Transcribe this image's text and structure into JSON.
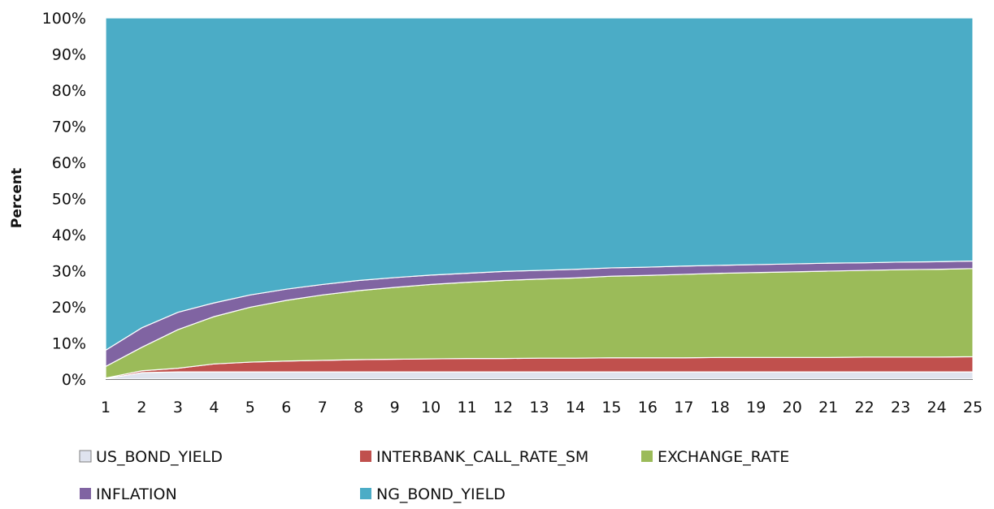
{
  "chart_data": {
    "type": "area",
    "stacked": "percent",
    "title": "",
    "xlabel": "",
    "ylabel": "Percent",
    "x": [
      1,
      2,
      3,
      4,
      5,
      6,
      7,
      8,
      9,
      10,
      11,
      12,
      13,
      14,
      15,
      16,
      17,
      18,
      19,
      20,
      21,
      22,
      23,
      24,
      25
    ],
    "ylim": [
      0,
      100
    ],
    "yticks": [
      "0%",
      "10%",
      "20%",
      "30%",
      "40%",
      "50%",
      "60%",
      "70%",
      "80%",
      "90%",
      "100%"
    ],
    "legend_position": "bottom",
    "series": [
      {
        "name": "US_BOND_YIELD",
        "color": "#dfe3ee",
        "values": [
          0.1,
          1.8,
          2.0,
          2.0,
          2.0,
          2.0,
          2.0,
          2.0,
          2.0,
          2.0,
          2.0,
          2.0,
          2.0,
          2.0,
          2.0,
          2.0,
          2.0,
          2.0,
          2.0,
          2.0,
          2.0,
          2.0,
          2.0,
          2.0,
          2.0
        ]
      },
      {
        "name": "INTERBANK_CALL_RATE_SM",
        "color": "#c0504d",
        "values": [
          0.2,
          0.5,
          1.0,
          2.2,
          2.7,
          3.0,
          3.2,
          3.4,
          3.5,
          3.6,
          3.7,
          3.7,
          3.8,
          3.8,
          3.9,
          3.9,
          3.9,
          4.0,
          4.0,
          4.0,
          4.0,
          4.1,
          4.1,
          4.1,
          4.2
        ]
      },
      {
        "name": "EXCHANGE_RATE",
        "color": "#9bbb59",
        "values": [
          3.2,
          6.5,
          10.7,
          13.1,
          15.2,
          16.8,
          18.1,
          19.1,
          19.9,
          20.6,
          21.1,
          21.6,
          21.9,
          22.2,
          22.6,
          22.8,
          23.1,
          23.3,
          23.5,
          23.7,
          23.9,
          24.0,
          24.2,
          24.3,
          24.4
        ]
      },
      {
        "name": "INFLATION",
        "color": "#8064a2",
        "values": [
          4.5,
          5.4,
          4.8,
          3.8,
          3.4,
          3.1,
          2.9,
          2.8,
          2.7,
          2.6,
          2.5,
          2.5,
          2.4,
          2.4,
          2.3,
          2.3,
          2.3,
          2.2,
          2.2,
          2.2,
          2.2,
          2.1,
          2.1,
          2.1,
          2.1
        ]
      },
      {
        "name": "NG_BOND_YIELD",
        "color": "#4bacc6",
        "values": [
          92.0,
          85.8,
          81.5,
          78.9,
          76.7,
          75.1,
          73.8,
          72.7,
          71.9,
          71.2,
          70.7,
          70.2,
          69.9,
          69.6,
          69.2,
          69.0,
          68.7,
          68.5,
          68.3,
          68.1,
          67.9,
          67.8,
          67.6,
          67.5,
          67.3
        ]
      }
    ]
  }
}
